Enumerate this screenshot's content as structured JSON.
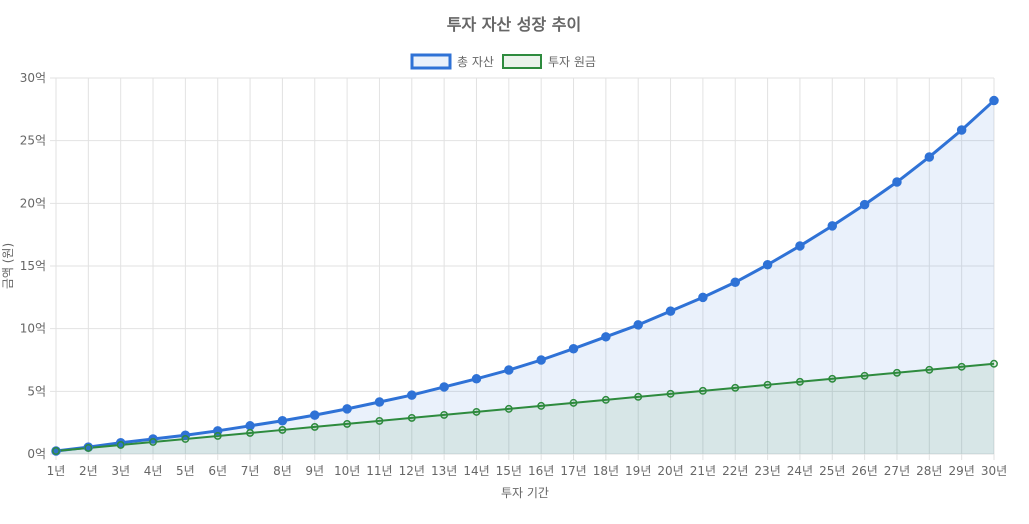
{
  "chart_data": {
    "type": "line",
    "title": "투자 자산 성장 추이",
    "xlabel": "투자 기간",
    "ylabel": "금액 (원)",
    "categories": [
      "1년",
      "2년",
      "3년",
      "4년",
      "5년",
      "6년",
      "7년",
      "8년",
      "9년",
      "10년",
      "11년",
      "12년",
      "13년",
      "14년",
      "15년",
      "16년",
      "17년",
      "18년",
      "19년",
      "20년",
      "21년",
      "22년",
      "23년",
      "24년",
      "25년",
      "26년",
      "27년",
      "28년",
      "29년",
      "30년"
    ],
    "ylim": [
      0,
      30
    ],
    "yticks": [
      0,
      5,
      10,
      15,
      20,
      25,
      30
    ],
    "ytick_suffix": "억",
    "grid": true,
    "legend": "top",
    "series": [
      {
        "name": "총 자산",
        "color": "#2f72d6",
        "fill": "rgba(47,114,214,0.1)",
        "values": [
          0.24,
          0.55,
          0.9,
          1.2,
          1.5,
          1.85,
          2.25,
          2.65,
          3.1,
          3.6,
          4.15,
          4.7,
          5.35,
          6.0,
          6.7,
          7.5,
          8.4,
          9.35,
          10.3,
          11.4,
          12.5,
          13.7,
          15.1,
          16.6,
          18.2,
          19.9,
          21.7,
          23.7,
          25.85,
          28.2
        ]
      },
      {
        "name": "투자 원금",
        "color": "#2e8b3e",
        "fill": "rgba(46,139,62,0.1)",
        "values": [
          0.24,
          0.48,
          0.72,
          0.96,
          1.2,
          1.44,
          1.68,
          1.92,
          2.16,
          2.4,
          2.64,
          2.88,
          3.12,
          3.36,
          3.6,
          3.84,
          4.08,
          4.32,
          4.56,
          4.8,
          5.04,
          5.28,
          5.52,
          5.76,
          6.0,
          6.24,
          6.48,
          6.72,
          6.96,
          7.2
        ]
      }
    ]
  }
}
